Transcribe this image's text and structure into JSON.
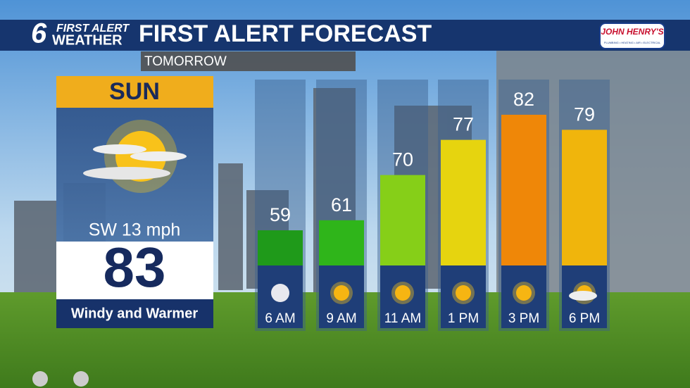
{
  "header": {
    "logo_number": "6",
    "logo_line1": "FIRST ALERT",
    "logo_line2": "WEATHER",
    "title": "FIRST ALERT FORECAST",
    "sponsor": "JOHN HENRY'S",
    "sponsor_tagline": "PLUMBING • HEATING • AIR • ELECTRICAL"
  },
  "subtitle": "TOMORROW",
  "day": {
    "name": "SUN",
    "wind": "SW 13 mph",
    "high": 83,
    "summary": "Windy and Warmer"
  },
  "chart_data": {
    "type": "bar",
    "categories": [
      "6 AM",
      "9 AM",
      "11 AM",
      "1 PM",
      "3 PM",
      "6 PM"
    ],
    "values": [
      59,
      61,
      70,
      77,
      82,
      79
    ],
    "colors": [
      "#1f9a1a",
      "#2fb51a",
      "#86cf18",
      "#e6d40f",
      "#ef8708",
      "#f0b50c"
    ],
    "ylim": [
      52,
      89
    ]
  }
}
